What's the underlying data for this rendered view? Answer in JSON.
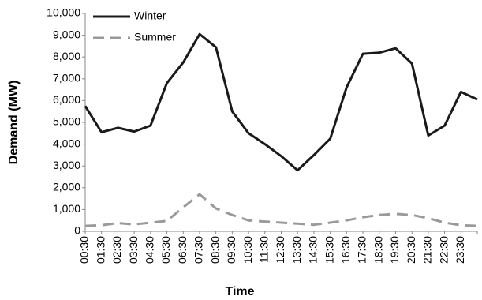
{
  "chart_data": {
    "type": "line",
    "xlabel": "Time",
    "ylabel": "Demand (MW)",
    "categories": [
      "00:30",
      "01:30",
      "02:30",
      "03:30",
      "04:30",
      "05:30",
      "06:30",
      "07:30",
      "08:30",
      "09:30",
      "10:30",
      "11:30",
      "12:30",
      "13:30",
      "14:30",
      "15:30",
      "16:30",
      "17:30",
      "18:30",
      "19:30",
      "20:30",
      "21:30",
      "22:30",
      "23:30",
      null
    ],
    "series": [
      {
        "name": "Winter",
        "color": "#1a1a1a",
        "dash": "solid",
        "values": [
          5750,
          4550,
          4750,
          4580,
          4850,
          6800,
          7750,
          9050,
          8450,
          5500,
          4500,
          4000,
          3450,
          2800,
          3500,
          4250,
          6600,
          8150,
          8200,
          8400,
          7700,
          4400,
          4850,
          6400,
          6050
        ]
      },
      {
        "name": "Summer",
        "color": "#9a9a9a",
        "dash": "dashed",
        "values": [
          250,
          280,
          380,
          320,
          400,
          480,
          1100,
          1700,
          1050,
          750,
          500,
          450,
          400,
          350,
          300,
          400,
          500,
          650,
          750,
          800,
          750,
          600,
          400,
          280,
          250
        ]
      }
    ],
    "ylim": [
      0,
      10000
    ],
    "yticks": [
      0,
      {
        "value": 1000,
        "label": "1,000"
      },
      {
        "value": 2000,
        "label": "2,000"
      },
      {
        "value": 3000,
        "label": "3,000"
      },
      {
        "value": 4000,
        "label": "4,000"
      },
      {
        "value": 5000,
        "label": "5,000"
      },
      {
        "value": 6000,
        "label": "6,000"
      },
      {
        "value": 7000,
        "label": "7,000"
      },
      {
        "value": 8000,
        "label": "8,000"
      },
      {
        "value": 9000,
        "label": "9,000"
      },
      {
        "value": 10000,
        "label": "10,000"
      }
    ],
    "grid": false,
    "legend": "upper left"
  }
}
